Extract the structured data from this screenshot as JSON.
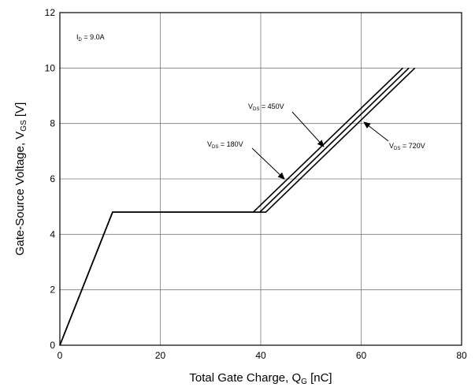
{
  "chart_data": {
    "type": "line",
    "title": "",
    "xlabel": {
      "main": "Total Gate Charge, Q",
      "sub": "G",
      "unit": " [nC]"
    },
    "ylabel": {
      "main": "Gate-Source Voltage, V",
      "sub": "GS",
      "unit": " [V]"
    },
    "xlim": [
      0,
      80
    ],
    "ylim": [
      0,
      12
    ],
    "x_ticks": [
      "0",
      "20",
      "40",
      "60",
      "80"
    ],
    "y_ticks": [
      "0",
      "2",
      "4",
      "6",
      "8",
      "10",
      "12"
    ],
    "grid": true,
    "condition": {
      "main": "I",
      "sub": "D",
      "rest": " = 9.0A"
    },
    "series": [
      {
        "name": "V_DS = 180V",
        "label": {
          "main": "V",
          "sub": "DS",
          "rest": " = 180V"
        },
        "points": [
          [
            0,
            0
          ],
          [
            10.5,
            4.8
          ],
          [
            38.5,
            4.8
          ],
          [
            68.3,
            10.0
          ]
        ]
      },
      {
        "name": "V_DS = 450V",
        "label": {
          "main": "V",
          "sub": "DS",
          "rest": " = 450V"
        },
        "points": [
          [
            0,
            0
          ],
          [
            10.5,
            4.8
          ],
          [
            39.8,
            4.8
          ],
          [
            69.5,
            10.0
          ]
        ]
      },
      {
        "name": "V_DS = 720V",
        "label": {
          "main": "V",
          "sub": "DS",
          "rest": " = 720V"
        },
        "points": [
          [
            0,
            0
          ],
          [
            10.5,
            4.8
          ],
          [
            41.0,
            4.8
          ],
          [
            70.7,
            10.0
          ]
        ]
      }
    ]
  }
}
